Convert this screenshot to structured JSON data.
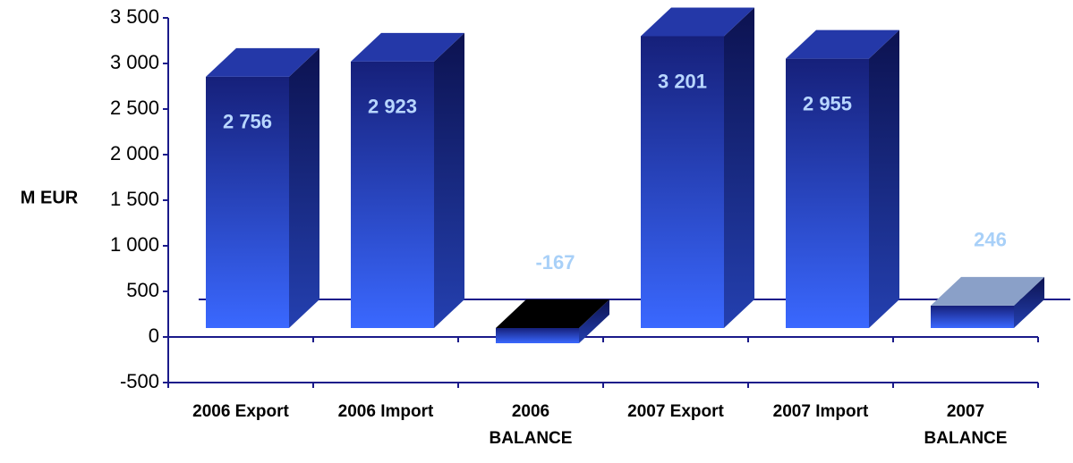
{
  "chart_data": {
    "type": "bar3d",
    "y_label": "M EUR",
    "categories": [
      "2006 Export",
      "2006 Import",
      "2006 BALANCE",
      "2007 Export",
      "2007 Import",
      "2007 BALANCE"
    ],
    "values": [
      2756,
      2923,
      -167,
      3201,
      2955,
      246
    ],
    "value_labels": [
      "2 756",
      "2 923",
      "-167",
      "3 201",
      "2 955",
      "246"
    ],
    "color": "#2f55f0",
    "ylim": [
      -500,
      3500
    ],
    "yticks": [
      -500,
      0,
      500,
      {
        "value": 1000,
        "label": "1 000"
      },
      {
        "value": 1500,
        "label": "1 500"
      },
      {
        "value": 2000,
        "label": "2 000"
      },
      {
        "value": 2500,
        "label": "2 500"
      },
      {
        "value": 3000,
        "label": "3 000"
      },
      {
        "value": 3500,
        "label": "3 500"
      }
    ]
  }
}
